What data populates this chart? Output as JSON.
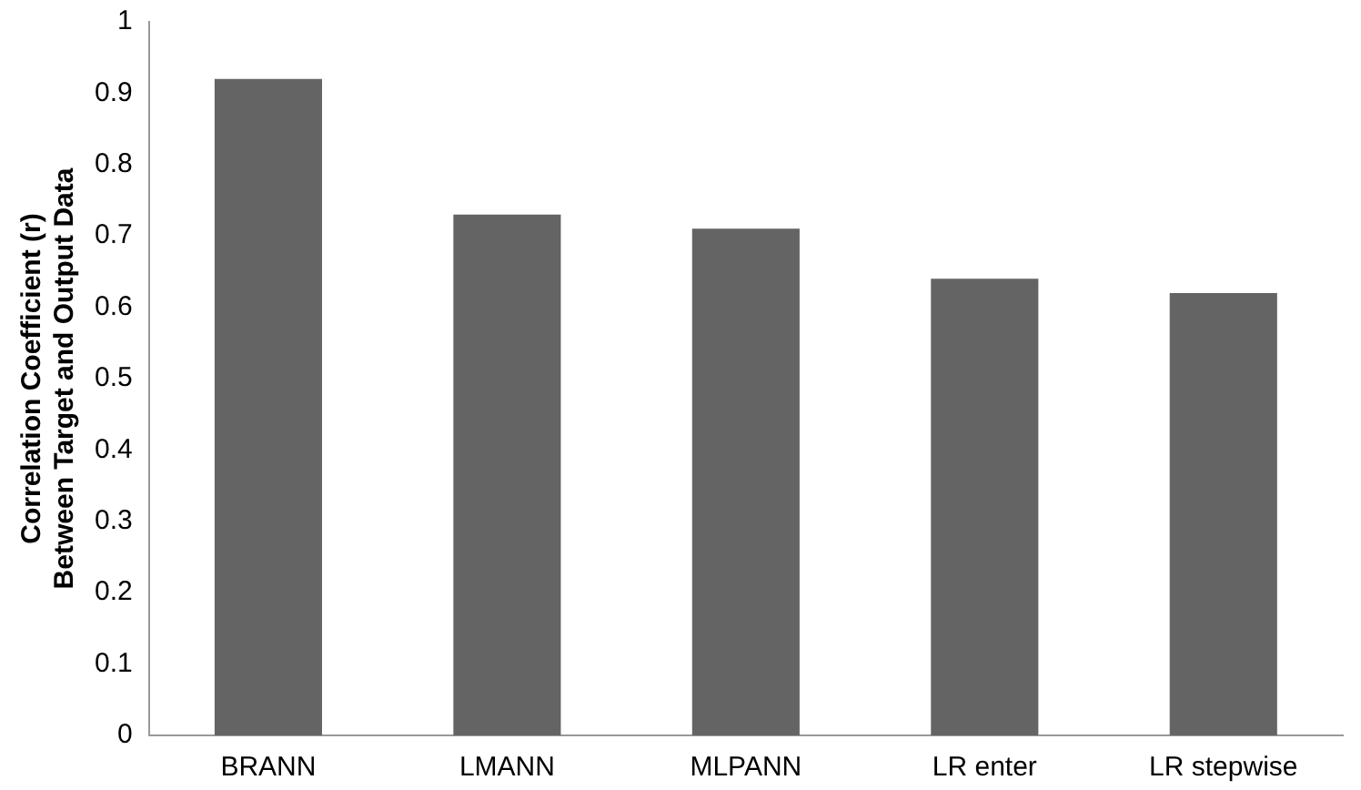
{
  "chart_data": {
    "type": "bar",
    "ylabel": "Correlation Coefficient (r) Between Target and Output Data",
    "categories": [
      "BRANN",
      "LMANN",
      "MLPANN",
      "LR enter",
      "LR stepwise"
    ],
    "values": [
      0.92,
      0.73,
      0.71,
      0.64,
      0.62
    ],
    "color": "#646464",
    "ylim": [
      0,
      1
    ],
    "yticks": [
      0,
      0.1,
      0.2,
      0.3,
      0.4,
      0.5,
      0.6,
      0.7,
      0.8,
      0.9,
      1
    ],
    "grid": false,
    "legend": false
  }
}
